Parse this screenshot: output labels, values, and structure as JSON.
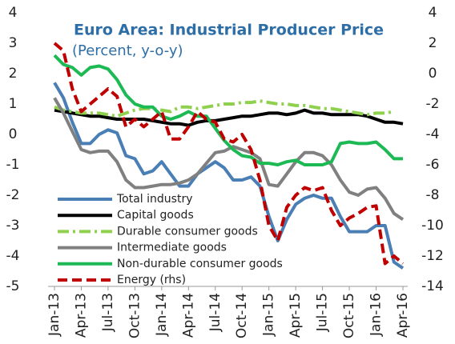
{
  "chart_data": {
    "type": "line",
    "title": "Euro Area: Industrial Producer Price",
    "subtitle": "(Percent, y-o-y)",
    "categories": [
      "Jan-13",
      null,
      null,
      "Apr-13",
      null,
      null,
      "Jul-13",
      null,
      null,
      "Oct-13",
      null,
      null,
      "Jan-14",
      null,
      null,
      "Apr-14",
      null,
      null,
      "Jul-14",
      null,
      null,
      "Oct-14",
      null,
      null,
      "Jan-15",
      null,
      null,
      "Apr-15",
      null,
      null,
      "Jul-15",
      null,
      null,
      "Oct-15",
      null,
      null,
      "Jan-16",
      null,
      null,
      "Apr-16"
    ],
    "ylim": [
      -5,
      4
    ],
    "yticks": [
      -5,
      -4,
      -3,
      -2,
      -1,
      0,
      1,
      2,
      3,
      4
    ],
    "y2lim": [
      -14,
      4
    ],
    "y2ticks": [
      -14,
      -12,
      -10,
      -8,
      -6,
      -4,
      -2,
      0,
      2,
      4
    ],
    "series": [
      {
        "name": "Total industry",
        "color": "#4a7fb5",
        "style": "solid",
        "values": [
          1.7,
          1.2,
          0.4,
          -0.3,
          -0.3,
          0.0,
          0.15,
          0.05,
          -0.7,
          -0.8,
          -1.3,
          -1.2,
          -0.9,
          -1.3,
          -1.7,
          -1.7,
          -1.3,
          -1.1,
          -0.9,
          -1.1,
          -1.5,
          -1.5,
          -1.4,
          -1.7,
          -2.7,
          -3.5,
          -2.8,
          -2.3,
          -2.1,
          -2.0,
          -2.1,
          -2.1,
          -2.7,
          -3.2,
          -3.2,
          -3.2,
          -3.0,
          -3.0,
          -4.2,
          -4.4
        ]
      },
      {
        "name": "Capital goods",
        "color": "#000000",
        "style": "solid",
        "values": [
          0.8,
          0.75,
          0.7,
          0.65,
          0.6,
          0.6,
          0.55,
          0.5,
          0.5,
          0.5,
          0.5,
          0.45,
          0.4,
          0.35,
          0.35,
          0.3,
          0.4,
          0.45,
          0.45,
          0.5,
          0.55,
          0.6,
          0.6,
          0.65,
          0.7,
          0.7,
          0.65,
          0.7,
          0.8,
          0.7,
          0.7,
          0.65,
          0.65,
          0.65,
          0.65,
          0.6,
          0.5,
          0.4,
          0.4,
          0.35
        ]
      },
      {
        "name": "Durable consumer goods",
        "color": "#8fd14f",
        "style": "dashdot",
        "values": [
          0.9,
          0.8,
          0.75,
          0.7,
          0.7,
          0.7,
          0.65,
          0.6,
          0.7,
          0.8,
          0.85,
          0.85,
          0.8,
          0.75,
          0.9,
          0.9,
          0.85,
          0.9,
          0.95,
          1.0,
          1.0,
          1.05,
          1.05,
          1.1,
          1.05,
          1.0,
          1.0,
          0.95,
          0.95,
          0.9,
          0.85,
          0.85,
          0.8,
          0.75,
          0.7,
          0.65,
          0.7,
          0.7,
          0.75,
          null
        ]
      },
      {
        "name": "Intermediate goods",
        "color": "#808080",
        "style": "solid",
        "values": [
          1.2,
          0.7,
          0.1,
          -0.5,
          -0.6,
          -0.55,
          -0.55,
          -0.9,
          -1.5,
          -1.75,
          -1.75,
          -1.7,
          -1.65,
          -1.65,
          -1.6,
          -1.5,
          -1.3,
          -0.95,
          -0.6,
          -0.55,
          -0.4,
          -0.5,
          -0.6,
          -0.8,
          -1.65,
          -1.7,
          -1.3,
          -0.9,
          -0.6,
          -0.6,
          -0.7,
          -1.0,
          -1.5,
          -1.9,
          -2.0,
          -1.8,
          -1.75,
          -2.1,
          -2.6,
          -2.8
        ]
      },
      {
        "name": "Non-durable consumer goods",
        "color": "#1db954",
        "style": "solid",
        "values": [
          2.6,
          2.3,
          2.2,
          1.95,
          2.2,
          2.25,
          2.15,
          1.8,
          1.3,
          1.0,
          0.9,
          0.9,
          0.6,
          0.5,
          0.6,
          0.75,
          0.6,
          0.6,
          0.2,
          -0.2,
          -0.5,
          -0.7,
          -0.75,
          -0.95,
          -0.95,
          -1.0,
          -0.9,
          -0.85,
          -1.0,
          -1.0,
          -1.0,
          -0.9,
          -0.3,
          -0.25,
          -0.3,
          -0.3,
          -0.25,
          -0.5,
          -0.8,
          -0.8
        ]
      },
      {
        "name": "Energy (rhs)",
        "color": "#c00000",
        "style": "dashed",
        "axis": "y2",
        "values": [
          2.0,
          1.5,
          -1.0,
          -2.5,
          -2.0,
          -1.5,
          -1.0,
          -1.5,
          -3.5,
          -3.0,
          -3.5,
          -3.0,
          -2.5,
          -4.3,
          -4.3,
          -3.5,
          -2.5,
          -3.0,
          -3.2,
          -4.3,
          -4.5,
          -4.0,
          -5.0,
          -7.0,
          -10.0,
          -11.0,
          -8.8,
          -8.0,
          -7.5,
          -7.7,
          -7.5,
          -9.0,
          -10.0,
          -9.5,
          -9.2,
          -8.8,
          -8.7,
          -12.5,
          -12.0,
          -12.5
        ]
      }
    ]
  }
}
